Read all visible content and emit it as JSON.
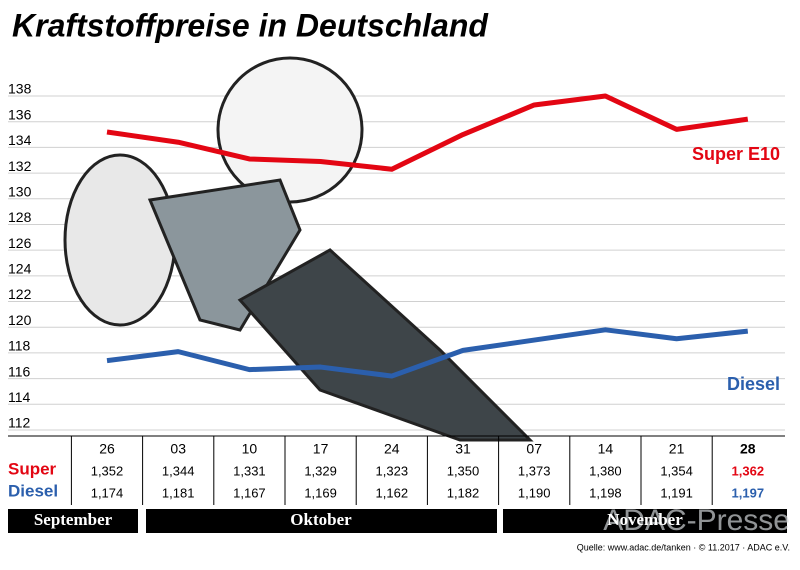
{
  "chart_data": {
    "type": "line",
    "title": "Kraftstoffpreise in Deutschland",
    "categories": [
      "26",
      "03",
      "10",
      "17",
      "24",
      "31",
      "07",
      "14",
      "21",
      "28"
    ],
    "months": [
      "September",
      "Oktober",
      "November"
    ],
    "row_labels": [
      "Super",
      "Diesel"
    ],
    "series": [
      {
        "name": "Super E10",
        "color": "#e30613",
        "values": [
          135.2,
          134.4,
          133.1,
          132.9,
          132.3,
          135.0,
          137.3,
          138.0,
          135.4,
          136.2
        ],
        "value_labels": [
          "1,352",
          "1,344",
          "1,331",
          "1,329",
          "1,323",
          "1,350",
          "1,373",
          "1,380",
          "1,354",
          "1,362"
        ]
      },
      {
        "name": "Diesel",
        "color": "#2b5fad",
        "values": [
          117.4,
          118.1,
          116.7,
          116.9,
          116.2,
          118.2,
          119.0,
          119.8,
          119.1,
          119.7
        ],
        "value_labels": [
          "1,174",
          "1,181",
          "1,167",
          "1,169",
          "1,162",
          "1,182",
          "1,190",
          "1,198",
          "1,191",
          "1,197"
        ]
      }
    ],
    "ylim": [
      112,
      138
    ],
    "yticks": [
      112,
      114,
      116,
      118,
      120,
      122,
      124,
      126,
      128,
      130,
      132,
      134,
      136,
      138
    ],
    "grid": true,
    "source": "Quelle: www.adac.de/tanken · © 11.2017 · ADAC e.V.",
    "watermark": "ADAC-Presse"
  }
}
